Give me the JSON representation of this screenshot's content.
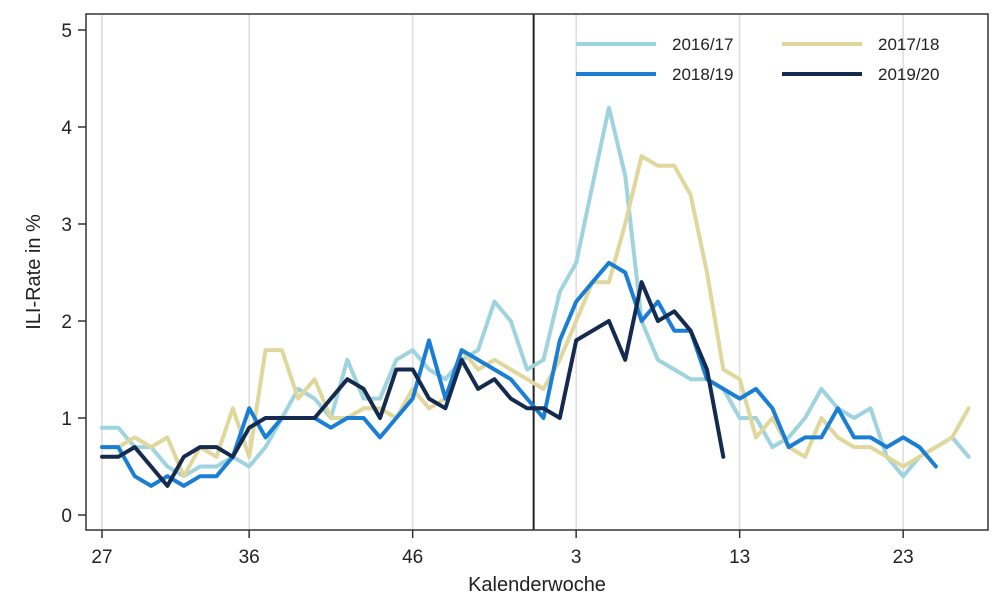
{
  "chart_data": {
    "type": "line",
    "xlabel": "Kalenderwoche",
    "ylabel": "ILI-Rate in %",
    "ylim": [
      0,
      5
    ],
    "yticks": [
      0,
      1,
      2,
      3,
      4,
      5
    ],
    "xticks": [
      {
        "index": 0,
        "label": "27"
      },
      {
        "index": 9,
        "label": "36"
      },
      {
        "index": 19,
        "label": "46"
      },
      {
        "index": 29,
        "label": "3"
      },
      {
        "index": 39,
        "label": "13"
      },
      {
        "index": 49,
        "label": "23"
      }
    ],
    "year_change_index": 26.4,
    "grid": true,
    "legend_position": "top-right",
    "series": [
      {
        "name": "2016/17",
        "color": "#9fd3de",
        "values": [
          0.9,
          0.9,
          0.7,
          0.7,
          0.5,
          0.4,
          0.5,
          0.5,
          0.6,
          0.5,
          0.7,
          1.0,
          1.3,
          1.2,
          1.0,
          1.6,
          1.2,
          1.2,
          1.6,
          1.7,
          1.5,
          1.4,
          1.6,
          1.7,
          2.2,
          2.0,
          1.5,
          1.6,
          2.3,
          2.6,
          3.4,
          4.2,
          3.5,
          2.0,
          1.6,
          1.5,
          1.4,
          1.4,
          1.3,
          1.0,
          1.0,
          0.7,
          0.8,
          1.0,
          1.3,
          1.1,
          1.0,
          1.1,
          0.6,
          0.4,
          0.6,
          0.7,
          0.8,
          0.6
        ]
      },
      {
        "name": "2017/18",
        "color": "#e0d79c",
        "values": [
          0.7,
          0.7,
          0.8,
          0.7,
          0.8,
          0.4,
          0.7,
          0.6,
          1.1,
          0.6,
          1.7,
          1.7,
          1.2,
          1.4,
          1.0,
          1.0,
          1.1,
          1.1,
          1.0,
          1.3,
          1.1,
          1.2,
          1.7,
          1.5,
          1.6,
          1.5,
          1.4,
          1.3,
          1.6,
          2.0,
          2.4,
          2.4,
          3.0,
          3.7,
          3.6,
          3.6,
          3.3,
          2.5,
          1.5,
          1.4,
          0.8,
          1.0,
          0.7,
          0.6,
          1.0,
          0.8,
          0.7,
          0.7,
          0.6,
          0.5,
          0.6,
          0.7,
          0.8,
          1.1
        ]
      },
      {
        "name": "2018/19",
        "color": "#1a7ed4",
        "values": [
          0.7,
          0.7,
          0.4,
          0.3,
          0.4,
          0.3,
          0.4,
          0.4,
          0.6,
          1.1,
          0.8,
          1.0,
          1.0,
          1.0,
          0.9,
          1.0,
          1.0,
          0.8,
          1.0,
          1.2,
          1.8,
          1.2,
          1.7,
          1.6,
          1.5,
          1.4,
          1.2,
          1.0,
          1.8,
          2.2,
          2.4,
          2.6,
          2.5,
          2.0,
          2.2,
          1.9,
          1.9,
          1.4,
          1.3,
          1.2,
          1.3,
          1.1,
          0.7,
          0.8,
          0.8,
          1.1,
          0.8,
          0.8,
          0.7,
          0.8,
          0.7,
          0.5
        ]
      },
      {
        "name": "2019/20",
        "color": "#152a4f",
        "values": [
          0.6,
          0.6,
          0.7,
          0.5,
          0.3,
          0.6,
          0.7,
          0.7,
          0.6,
          0.9,
          1.0,
          1.0,
          1.0,
          1.0,
          1.2,
          1.4,
          1.3,
          1.0,
          1.5,
          1.5,
          1.2,
          1.1,
          1.6,
          1.3,
          1.4,
          1.2,
          1.1,
          1.1,
          1.0,
          1.8,
          1.9,
          2.0,
          1.6,
          2.4,
          2.0,
          2.1,
          1.9,
          1.5,
          0.6
        ]
      }
    ]
  }
}
